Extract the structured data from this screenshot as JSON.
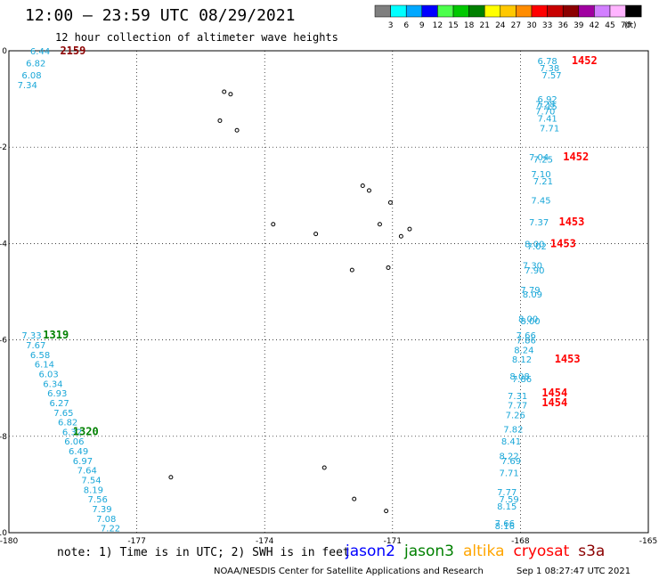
{
  "header": {
    "title": "12:00 — 23:59 UTC 08/29/2021",
    "subtitle": "12 hour collection of altimeter wave heights"
  },
  "colorbar": {
    "labels": [
      "3",
      "6",
      "9",
      "12",
      "15",
      "18",
      "21",
      "24",
      "27",
      "30",
      "33",
      "36",
      "39",
      "42",
      "45",
      "70"
    ],
    "unit": "(ft)",
    "colors": [
      "#7f7f7f",
      "#00ffff",
      "#00a8ff",
      "#0000ff",
      "#4cff4c",
      "#00c800",
      "#008000",
      "#ffff00",
      "#ffc800",
      "#ff8c00",
      "#ff0000",
      "#c80000",
      "#8c0000",
      "#a000a0",
      "#d27fff",
      "#ffb4ff",
      "#000000"
    ]
  },
  "footer": {
    "note": "note:  1) Time is in UTC;  2) SWH is in feet",
    "satellites": [
      {
        "name": "jason2",
        "color": "#0000ff"
      },
      {
        "name": "jason3",
        "color": "#008000"
      },
      {
        "name": "altika",
        "color": "#ffa500"
      },
      {
        "name": "cryosat",
        "color": "#ff0000"
      },
      {
        "name": "s3a",
        "color": "#8b0000"
      }
    ],
    "credit": "NOAA/NESDIS Center for Satellite Applications and Research",
    "timestamp": "Sep  1 08:27:47 UTC 2021"
  },
  "chart_data": {
    "type": "scatter",
    "title": "12:00 — 23:59 UTC 08/29/2021",
    "xlim": [
      -180,
      -165
    ],
    "ylim": [
      -10,
      0
    ],
    "xticks": [
      "-180",
      "-177",
      "-174",
      "-171",
      "-168",
      "-165"
    ],
    "yticks": [
      "0",
      "-2",
      "-4",
      "-6",
      "-8",
      "-10"
    ],
    "grid": true,
    "tracks": [
      {
        "satellite": "s3a",
        "time": "2159",
        "time_pos": [
          -178.8,
          0.0
        ],
        "color": "#8b0000",
        "points": [
          [
            -179.5,
            0.0,
            "6.44"
          ],
          [
            -179.6,
            -0.25,
            "6.82"
          ],
          [
            -179.7,
            -0.5,
            "6.08"
          ],
          [
            -179.8,
            -0.7,
            "7.34"
          ]
        ]
      },
      {
        "satellite": "cryosat",
        "time": "1452",
        "time_pos": [
          -166.8,
          -0.2
        ],
        "color": "#ff0000",
        "points": [
          [
            -167.6,
            -0.2,
            "6.78"
          ],
          [
            -167.55,
            -0.35,
            "7.38"
          ],
          [
            -167.5,
            -0.5,
            "7.57"
          ],
          [
            -167.6,
            -1.0,
            "6.92"
          ],
          [
            -167.65,
            -1.1,
            "7.28"
          ],
          [
            -167.6,
            -1.15,
            "7.15"
          ],
          [
            -167.65,
            -1.25,
            "7.70"
          ],
          [
            -167.6,
            -1.4,
            "7.41"
          ],
          [
            -167.55,
            -1.6,
            "7.71"
          ]
        ]
      },
      {
        "satellite": "cryosat",
        "time": "1452",
        "time_pos": [
          -167.0,
          -2.2
        ],
        "color": "#ff0000",
        "points": [
          [
            -167.8,
            -2.2,
            "7.04"
          ],
          [
            -167.7,
            -2.25,
            "7.25"
          ],
          [
            -167.75,
            -2.55,
            "7.10"
          ],
          [
            -167.7,
            -2.7,
            "7.21"
          ],
          [
            -167.75,
            -3.1,
            "7.45"
          ],
          [
            -167.8,
            -3.55,
            "7.37"
          ]
        ]
      },
      {
        "satellite": "cryosat",
        "time": "1453",
        "time_pos": [
          -167.1,
          -3.55
        ],
        "color": "#ff0000",
        "points": []
      },
      {
        "satellite": "cryosat",
        "time": "1453",
        "time_pos": [
          -167.3,
          -4.0
        ],
        "color": "#ff0000",
        "points": [
          [
            -167.9,
            -4.0,
            "8.00"
          ],
          [
            -167.85,
            -4.05,
            "7.02"
          ],
          [
            -167.95,
            -4.45,
            "7.30"
          ],
          [
            -167.9,
            -4.55,
            "7.90"
          ],
          [
            -168.0,
            -4.95,
            "7.79"
          ],
          [
            -167.95,
            -5.05,
            "8.09"
          ],
          [
            -168.05,
            -5.55,
            "8.00"
          ],
          [
            -168.0,
            -5.6,
            "8.00"
          ],
          [
            -168.1,
            -5.9,
            "7.66"
          ],
          [
            -168.1,
            -6.0,
            "7.86"
          ],
          [
            -168.15,
            -6.2,
            "8.24"
          ]
        ]
      },
      {
        "satellite": "cryosat",
        "time": "1453",
        "time_pos": [
          -167.2,
          -6.4
        ],
        "color": "#ff0000",
        "points": [
          [
            -168.2,
            -6.4,
            "8.12"
          ],
          [
            -168.25,
            -6.75,
            "8.08"
          ],
          [
            -168.2,
            -6.8,
            "7.86"
          ]
        ]
      },
      {
        "satellite": "cryosat",
        "time": "1454",
        "time_pos": [
          -167.5,
          -7.1
        ],
        "color": "#ff0000",
        "points": [
          [
            -168.3,
            -7.15,
            "7.31"
          ],
          [
            -168.3,
            -7.35,
            "7.77"
          ],
          [
            -168.35,
            -7.55,
            "7.26"
          ],
          [
            -168.4,
            -7.85,
            "7.82"
          ]
        ]
      },
      {
        "satellite": "cryosat",
        "time": "1454",
        "time_pos": [
          -167.5,
          -7.3
        ],
        "color": "#ff0000",
        "points": [
          [
            -168.45,
            -8.1,
            "8.41"
          ],
          [
            -168.5,
            -8.4,
            "8.22"
          ],
          [
            -168.45,
            -8.5,
            "7.69"
          ],
          [
            -168.5,
            -8.75,
            "7.71"
          ],
          [
            -168.55,
            -9.15,
            "7.77"
          ],
          [
            -168.5,
            -9.3,
            "7.59"
          ],
          [
            -168.55,
            -9.45,
            "8.15"
          ],
          [
            -168.6,
            -9.8,
            "7.66"
          ],
          [
            -168.6,
            -9.85,
            "8.16"
          ]
        ]
      },
      {
        "satellite": "jason3",
        "time": "1319",
        "time_pos": [
          -179.2,
          -5.9
        ],
        "color": "#008000",
        "points": [
          [
            -179.7,
            -5.9,
            "7.33"
          ],
          [
            -179.6,
            -6.1,
            "7.67"
          ],
          [
            -179.5,
            -6.3,
            "6.58"
          ],
          [
            -179.4,
            -6.5,
            "6.14"
          ],
          [
            -179.3,
            -6.7,
            "6.03"
          ],
          [
            -179.2,
            -6.9,
            "6.34"
          ],
          [
            -179.1,
            -7.1,
            "6.93"
          ],
          [
            -179.05,
            -7.3,
            "6.27"
          ],
          [
            -178.95,
            -7.5,
            "7.65"
          ],
          [
            -178.85,
            -7.7,
            "6.82"
          ],
          [
            -178.75,
            -7.9,
            "6.32"
          ]
        ]
      },
      {
        "satellite": "jason3",
        "time": "1320",
        "time_pos": [
          -178.5,
          -7.9
        ],
        "color": "#008000",
        "points": [
          [
            -178.7,
            -8.1,
            "6.06"
          ],
          [
            -178.6,
            -8.3,
            "6.49"
          ],
          [
            -178.5,
            -8.5,
            "6.97"
          ],
          [
            -178.4,
            -8.7,
            "7.64"
          ],
          [
            -178.3,
            -8.9,
            "7.54"
          ],
          [
            -178.25,
            -9.1,
            "8.19"
          ],
          [
            -178.15,
            -9.3,
            "7.56"
          ],
          [
            -178.05,
            -9.5,
            "7.39"
          ],
          [
            -177.95,
            -9.7,
            "7.08"
          ],
          [
            -177.85,
            -9.9,
            "7.22"
          ]
        ]
      }
    ],
    "islands": [
      [
        -174.95,
        -0.85
      ],
      [
        -174.8,
        -0.9
      ],
      [
        -175.05,
        -1.45
      ],
      [
        -174.65,
        -1.65
      ],
      [
        -171.7,
        -2.8
      ],
      [
        -171.55,
        -2.9
      ],
      [
        -171.05,
        -3.15
      ],
      [
        -171.3,
        -3.6
      ],
      [
        -170.6,
        -3.7
      ],
      [
        -170.8,
        -3.85
      ],
      [
        -173.8,
        -3.6
      ],
      [
        -172.8,
        -3.8
      ],
      [
        -171.95,
        -4.55
      ],
      [
        -171.1,
        -4.5
      ],
      [
        -172.6,
        -8.65
      ],
      [
        -171.9,
        -9.3
      ],
      [
        -171.15,
        -9.55
      ],
      [
        -176.2,
        -8.85
      ]
    ]
  }
}
